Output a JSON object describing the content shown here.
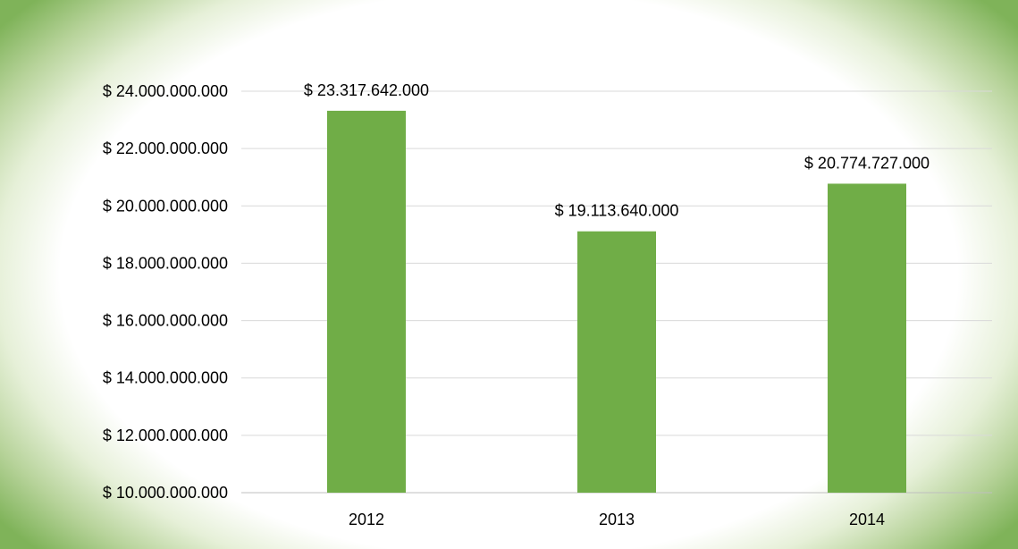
{
  "chart_data": {
    "type": "bar",
    "title": "",
    "xlabel": "",
    "ylabel": "",
    "categories": [
      "2012",
      "2013",
      "2014"
    ],
    "values": [
      23317642000,
      19113640000,
      20774727000
    ],
    "data_labels": [
      "$ 23.317.642.000",
      "$ 19.113.640.000",
      "$ 20.774.727.000"
    ],
    "ylim": [
      10000000000,
      24000000000
    ],
    "y_ticks": [
      10000000000,
      12000000000,
      14000000000,
      16000000000,
      18000000000,
      20000000000,
      22000000000,
      24000000000
    ],
    "y_tick_labels": [
      "$ 10.000.000.000",
      "$ 12.000.000.000",
      "$ 14.000.000.000",
      "$ 16.000.000.000",
      "$ 18.000.000.000",
      "$ 20.000.000.000",
      "$ 22.000.000.000",
      "$ 24.000.000.000"
    ],
    "grid": true,
    "legend": "none",
    "bar_color": "#70ad47"
  }
}
